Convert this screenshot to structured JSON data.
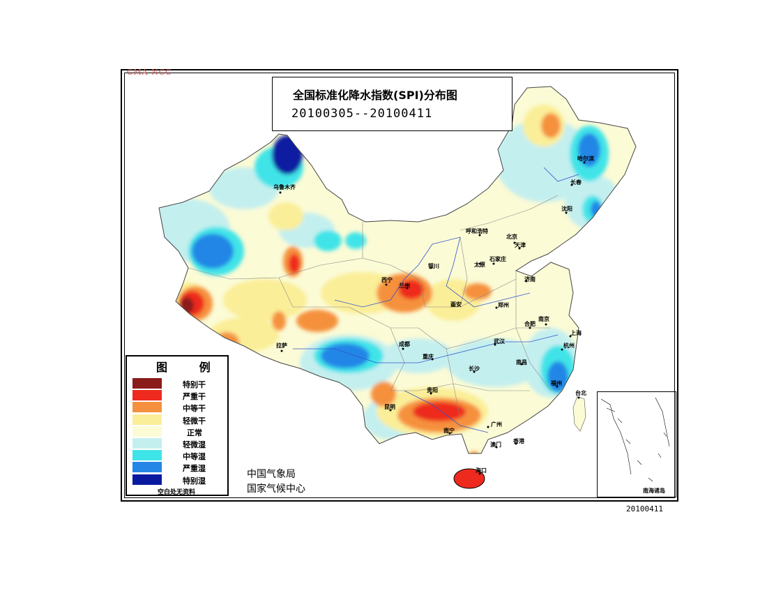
{
  "watermark": "CMA NCC",
  "title": "全国标准化降水指数(SPI)分布图",
  "date_range": "20100305--20100411",
  "footer_date": "20100411",
  "organization": {
    "line1": "中国气象局",
    "line2": "国家气候中心"
  },
  "legend": {
    "title": "图 例",
    "note": "空白处无资料",
    "items": [
      {
        "label": "特别干",
        "color": "#8b1a1a"
      },
      {
        "label": "严重干",
        "color": "#ee2a1e"
      },
      {
        "label": "中等干",
        "color": "#f5913e"
      },
      {
        "label": "轻微干",
        "color": "#fbee98"
      },
      {
        "label": "正常",
        "color": "#fbfbd6"
      },
      {
        "label": "轻微湿",
        "color": "#c4efef"
      },
      {
        "label": "中等湿",
        "color": "#3fe4e8"
      },
      {
        "label": "严重湿",
        "color": "#2486e6"
      },
      {
        "label": "特别湿",
        "color": "#0a1aa0"
      }
    ]
  },
  "inset": {
    "label": "南海诸岛"
  },
  "cities": [
    {
      "name": "乌鲁木齐"
    },
    {
      "name": "哈尔滨"
    },
    {
      "name": "长春"
    },
    {
      "name": "沈阳"
    },
    {
      "name": "呼和浩特"
    },
    {
      "name": "北京"
    },
    {
      "name": "天津"
    },
    {
      "name": "太原"
    },
    {
      "name": "石家庄"
    },
    {
      "name": "济南"
    },
    {
      "name": "西宁"
    },
    {
      "name": "兰州"
    },
    {
      "name": "银川"
    },
    {
      "name": "西安"
    },
    {
      "name": "郑州"
    },
    {
      "name": "合肥"
    },
    {
      "name": "南京"
    },
    {
      "name": "上海"
    },
    {
      "name": "拉萨"
    },
    {
      "name": "成都"
    },
    {
      "name": "重庆"
    },
    {
      "name": "武汉"
    },
    {
      "name": "杭州"
    },
    {
      "name": "南昌"
    },
    {
      "name": "长沙"
    },
    {
      "name": "贵阳"
    },
    {
      "name": "福州"
    },
    {
      "name": "昆明"
    },
    {
      "name": "台北"
    },
    {
      "name": "南宁"
    },
    {
      "name": "广州"
    },
    {
      "name": "澳门"
    },
    {
      "name": "香港"
    },
    {
      "name": "海口"
    }
  ]
}
